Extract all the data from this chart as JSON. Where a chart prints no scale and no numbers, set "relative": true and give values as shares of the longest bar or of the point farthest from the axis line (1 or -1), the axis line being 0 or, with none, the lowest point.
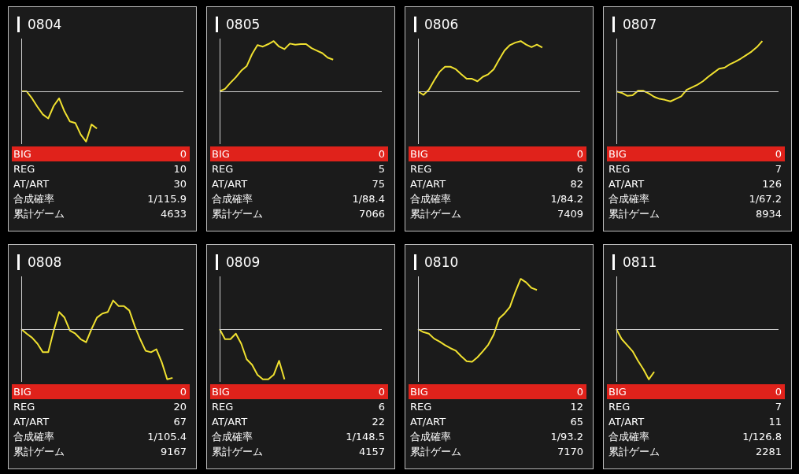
{
  "chart_data": [
    {
      "type": "line",
      "title": "0804",
      "relative": true,
      "categories": [
        null,
        null,
        null,
        null,
        null,
        null,
        null,
        null,
        null,
        null,
        null,
        null,
        null,
        null,
        null,
        null,
        null,
        null,
        null,
        null,
        null,
        null,
        null,
        null,
        null,
        null,
        null,
        null,
        null,
        null,
        null
      ],
      "series": [
        {
          "color": "#f0e130",
          "values": [
            0,
            0,
            -0.14,
            -0.31,
            -0.46,
            -0.54,
            -0.29,
            -0.14,
            -0.4,
            -0.6,
            -0.63,
            -0.86,
            -1,
            -0.66,
            -0.74,
            null,
            null,
            null,
            null,
            null,
            null,
            null,
            null,
            null,
            null,
            null,
            null,
            null,
            null,
            null,
            null
          ]
        }
      ],
      "annotations": [
        "BIG",
        "0",
        "REG",
        "10",
        "AT/ART",
        "30",
        "合成確率",
        "1/115.9",
        "累計ゲーム",
        "4633"
      ]
    },
    {
      "type": "line",
      "title": "0805",
      "relative": true,
      "categories": [
        null,
        null,
        null,
        null,
        null,
        null,
        null,
        null,
        null,
        null,
        null,
        null,
        null,
        null,
        null,
        null,
        null,
        null,
        null,
        null,
        null,
        null,
        null,
        null,
        null,
        null,
        null,
        null,
        null,
        null,
        null
      ],
      "series": [
        {
          "color": "#f0e130",
          "values": [
            0,
            0.05,
            0.17,
            0.28,
            0.41,
            0.5,
            0.74,
            0.92,
            0.89,
            0.94,
            1,
            0.89,
            0.84,
            0.95,
            0.93,
            0.94,
            0.94,
            0.86,
            0.81,
            0.76,
            0.67,
            0.63,
            null,
            null,
            null,
            null,
            null,
            null,
            null,
            null,
            null
          ]
        }
      ],
      "annotations": [
        "BIG",
        "0",
        "REG",
        "5",
        "AT/ART",
        "75",
        "合成確率",
        "1/88.4",
        "累計ゲーム",
        "7066"
      ]
    },
    {
      "type": "line",
      "title": "0806",
      "relative": true,
      "categories": [
        null,
        null,
        null,
        null,
        null,
        null,
        null,
        null,
        null,
        null,
        null,
        null,
        null,
        null,
        null,
        null,
        null,
        null,
        null,
        null,
        null,
        null,
        null,
        null,
        null,
        null,
        null,
        null,
        null,
        null,
        null
      ],
      "series": [
        {
          "color": "#f0e130",
          "values": [
            0,
            -0.07,
            0.03,
            0.22,
            0.39,
            0.49,
            0.49,
            0.44,
            0.34,
            0.25,
            0.25,
            0.2,
            0.29,
            0.34,
            0.44,
            0.63,
            0.81,
            0.92,
            0.97,
            1,
            0.93,
            0.88,
            0.93,
            0.87,
            null,
            null,
            null,
            null,
            null,
            null,
            null
          ]
        }
      ],
      "annotations": [
        "BIG",
        "0",
        "REG",
        "6",
        "AT/ART",
        "82",
        "合成確率",
        "1/84.2",
        "累計ゲーム",
        "7409"
      ]
    },
    {
      "type": "line",
      "title": "0807",
      "relative": true,
      "categories": [
        null,
        null,
        null,
        null,
        null,
        null,
        null,
        null,
        null,
        null,
        null,
        null,
        null,
        null,
        null,
        null,
        null,
        null,
        null,
        null,
        null,
        null,
        null,
        null,
        null,
        null,
        null,
        null,
        null,
        null,
        null
      ],
      "series": [
        {
          "color": "#f0e130",
          "values": [
            0,
            -0.03,
            -0.09,
            -0.08,
            0.01,
            0.01,
            -0.04,
            -0.11,
            -0.15,
            -0.17,
            -0.2,
            -0.15,
            -0.1,
            0.03,
            0.08,
            0.13,
            0.2,
            0.29,
            0.37,
            0.45,
            0.47,
            0.54,
            0.59,
            0.65,
            0.72,
            0.79,
            0.88,
            1,
            null,
            null,
            null
          ]
        }
      ],
      "annotations": [
        "BIG",
        "0",
        "REG",
        "7",
        "AT/ART",
        "126",
        "合成確率",
        "1/67.2",
        "累計ゲーム",
        "8934"
      ]
    },
    {
      "type": "line",
      "title": "0808",
      "relative": true,
      "categories": [
        null,
        null,
        null,
        null,
        null,
        null,
        null,
        null,
        null,
        null,
        null,
        null,
        null,
        null,
        null,
        null,
        null,
        null,
        null,
        null,
        null,
        null,
        null,
        null,
        null,
        null,
        null,
        null,
        null,
        null,
        null
      ],
      "series": [
        {
          "color": "#f0e130",
          "values": [
            0,
            -0.09,
            -0.17,
            -0.29,
            -0.46,
            -0.46,
            -0.03,
            0.34,
            0.23,
            -0.03,
            -0.09,
            -0.2,
            -0.26,
            0,
            0.23,
            0.31,
            0.34,
            0.57,
            0.46,
            0.46,
            0.37,
            0.06,
            -0.2,
            -0.43,
            -0.46,
            -0.4,
            -0.66,
            -1,
            -0.97,
            null,
            null
          ]
        }
      ],
      "annotations": [
        "BIG",
        "0",
        "REG",
        "20",
        "AT/ART",
        "67",
        "合成確率",
        "1/105.4",
        "累計ゲーム",
        "9167"
      ]
    },
    {
      "type": "line",
      "title": "0809",
      "relative": true,
      "categories": [
        null,
        null,
        null,
        null,
        null,
        null,
        null,
        null,
        null,
        null,
        null,
        null,
        null,
        null,
        null,
        null,
        null,
        null,
        null,
        null,
        null,
        null,
        null,
        null,
        null,
        null,
        null,
        null,
        null,
        null,
        null
      ],
      "series": [
        {
          "color": "#f0e130",
          "values": [
            0,
            -0.2,
            -0.2,
            -0.09,
            -0.29,
            -0.6,
            -0.71,
            -0.91,
            -1,
            -1,
            -0.91,
            -0.63,
            -1,
            null,
            null,
            null,
            null,
            null,
            null,
            null,
            null,
            null,
            null,
            null,
            null,
            null,
            null,
            null,
            null,
            null,
            null
          ]
        }
      ],
      "annotations": [
        "BIG",
        "0",
        "REG",
        "6",
        "AT/ART",
        "22",
        "合成確率",
        "1/148.5",
        "累計ゲーム",
        "4157"
      ]
    },
    {
      "type": "line",
      "title": "0810",
      "relative": true,
      "categories": [
        null,
        null,
        null,
        null,
        null,
        null,
        null,
        null,
        null,
        null,
        null,
        null,
        null,
        null,
        null,
        null,
        null,
        null,
        null,
        null,
        null,
        null,
        null,
        null,
        null,
        null,
        null,
        null,
        null,
        null,
        null
      ],
      "series": [
        {
          "color": "#f0e130",
          "values": [
            0,
            -0.06,
            -0.09,
            -0.19,
            -0.25,
            -0.32,
            -0.38,
            -0.43,
            -0.54,
            -0.64,
            -0.65,
            -0.56,
            -0.44,
            -0.31,
            -0.11,
            0.21,
            0.31,
            0.44,
            0.74,
            1,
            0.93,
            0.82,
            0.78,
            null,
            null,
            null,
            null,
            null,
            null,
            null,
            null
          ]
        }
      ],
      "annotations": [
        "BIG",
        "0",
        "REG",
        "12",
        "AT/ART",
        "65",
        "合成確率",
        "1/93.2",
        "累計ゲーム",
        "7170"
      ]
    },
    {
      "type": "line",
      "title": "0811",
      "relative": true,
      "categories": [
        null,
        null,
        null,
        null,
        null,
        null,
        null,
        null,
        null,
        null,
        null,
        null,
        null,
        null,
        null,
        null,
        null,
        null,
        null,
        null,
        null,
        null,
        null,
        null,
        null,
        null,
        null,
        null,
        null,
        null,
        null
      ],
      "series": [
        {
          "color": "#f0e130",
          "values": [
            0,
            -0.2,
            -0.32,
            -0.44,
            -0.63,
            -0.8,
            -1,
            -0.85,
            null,
            null,
            null,
            null,
            null,
            null,
            null,
            null,
            null,
            null,
            null,
            null,
            null,
            null,
            null,
            null,
            null,
            null,
            null,
            null,
            null,
            null,
            null
          ]
        }
      ],
      "annotations": [
        "BIG",
        "0",
        "REG",
        "7",
        "AT/ART",
        "11",
        "合成確率",
        "1/126.8",
        "累計ゲーム",
        "2281"
      ]
    }
  ]
}
